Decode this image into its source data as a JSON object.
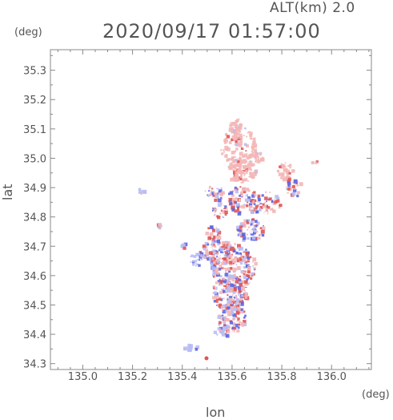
{
  "header": {
    "altitude_label": "ALT(km)  2.0",
    "timestamp": "2020/09/17 01:57:00"
  },
  "axes": {
    "y_unit": "(deg)",
    "x_unit": "(deg)",
    "x_label": "lon",
    "y_label": "lat"
  },
  "chart_data": {
    "type": "heatmap",
    "xlabel": "lon",
    "ylabel": "lat",
    "xlim": [
      134.87,
      136.16
    ],
    "ylim": [
      34.28,
      35.37
    ],
    "x_ticks": [
      "135.0",
      "135.2",
      "135.4",
      "135.6",
      "135.8",
      "136.0"
    ],
    "y_ticks": [
      "34.3",
      "34.4",
      "34.5",
      "34.6",
      "34.7",
      "34.8",
      "34.9",
      "35.0",
      "35.1",
      "35.2",
      "35.3"
    ],
    "grid": false,
    "colors": {
      "positive": "#e05555",
      "negative": "#5a66e0",
      "positive_light": "#f4b6b6",
      "negative_light": "#b8bdf4"
    }
  }
}
